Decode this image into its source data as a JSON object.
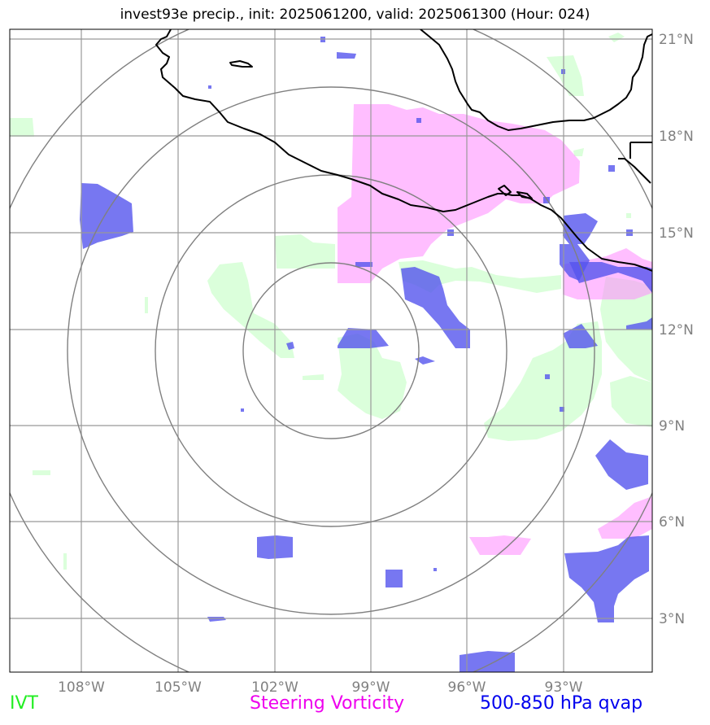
{
  "title": "invest93e precip., init: 2025061200, valid: 2025061300 (Hour: 024)",
  "map": {
    "lon_labels": [
      "108°W",
      "105°W",
      "102°W",
      "99°W",
      "96°W",
      "93°W"
    ],
    "lat_labels": [
      "21°N",
      "18°N",
      "15°N",
      "12°N",
      "9°N",
      "6°N",
      "3°N"
    ],
    "range_rings": 4,
    "colors": {
      "ivt": "#ccffcc",
      "vorticity": "#ff88ff",
      "qvap": "#5555ee",
      "grid": "#999999",
      "rings": "#808080",
      "coast": "#000000"
    }
  },
  "legend": {
    "ivt": "IVT",
    "vorticity": "Steering Vorticity",
    "qvap": "500-850 hPa qvap"
  }
}
